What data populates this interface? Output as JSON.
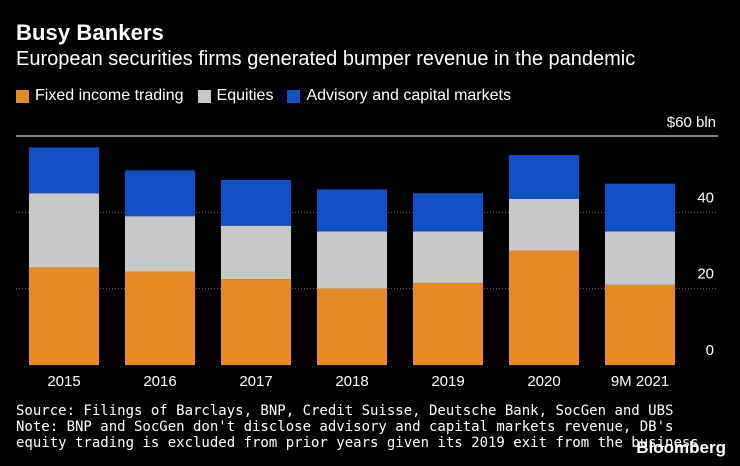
{
  "chart_data": {
    "type": "bar",
    "stacked": true,
    "title": "Busy Bankers",
    "subtitle": "European securities firms generated bumper revenue in the pandemic",
    "categories": [
      "2015",
      "2016",
      "2017",
      "2018",
      "2019",
      "2020",
      "9M 2021"
    ],
    "series": [
      {
        "name": "Fixed income trading",
        "color": "#e68a23",
        "values": [
          25.5,
          24.5,
          22.5,
          20.0,
          21.5,
          30.0,
          21.0
        ]
      },
      {
        "name": "Equities",
        "color": "#c8c8c8",
        "values": [
          19.5,
          14.5,
          14.0,
          15.0,
          13.5,
          13.5,
          14.0
        ]
      },
      {
        "name": "Advisory and capital markets",
        "color": "#1350c8",
        "values": [
          12.0,
          12.0,
          12.0,
          11.0,
          10.0,
          11.5,
          12.5
        ]
      }
    ],
    "unit_label": "$60 bln",
    "yticks": [
      0,
      20,
      40
    ],
    "ylim": [
      0,
      60
    ],
    "grid": true,
    "legend": "top-left",
    "xlabel": "",
    "ylabel": ""
  },
  "notes": {
    "source": "Source: Filings of Barclays, BNP, Credit Suisse, Deutsche Bank, SocGen and UBS",
    "note_line1": "Note: BNP and SocGen don't disclose advisory and capital markets revenue, DB's",
    "note_line2": "equity trading is excluded from prior years given its 2019 exit from the business"
  },
  "brand": "Bloomberg"
}
